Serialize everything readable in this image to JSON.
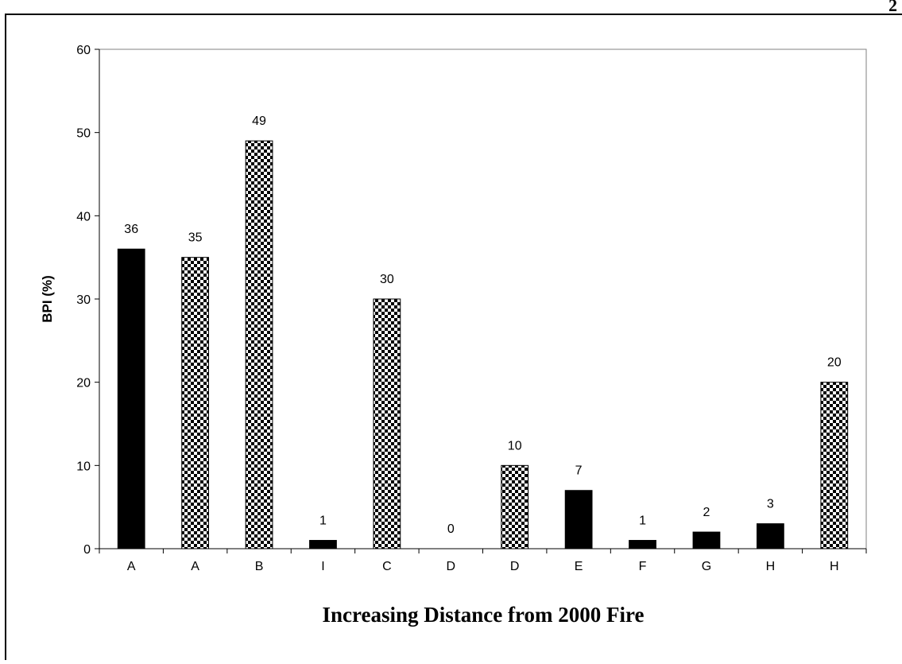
{
  "page_number": "2",
  "chart_data": {
    "type": "bar",
    "categories": [
      "A",
      "A",
      "B",
      "I",
      "C",
      "D",
      "D",
      "E",
      "F",
      "G",
      "H",
      "H"
    ],
    "values": [
      36,
      35,
      49,
      1,
      30,
      0,
      10,
      7,
      1,
      2,
      3,
      20
    ],
    "data_labels": [
      "36",
      "35",
      "49",
      "1",
      "30",
      "0",
      "10",
      "7",
      "1",
      "2",
      "3",
      "20"
    ],
    "bar_fills": [
      "solid",
      "checkered",
      "checkered",
      "solid",
      "checkered",
      "solid",
      "checkered",
      "solid",
      "solid",
      "solid",
      "solid",
      "checkered"
    ],
    "ylim": [
      0,
      60
    ],
    "yticks": [
      0,
      10,
      20,
      30,
      40,
      50,
      60
    ],
    "ylabel": "BPI (%)",
    "xlabel": "Increasing Distance from 2000 Fire",
    "title": "",
    "grid": false,
    "legend": "none",
    "colors": {
      "bar": "#000000",
      "checker_light": "#ffffff",
      "axis": "#000000",
      "frame": "#808080"
    }
  }
}
